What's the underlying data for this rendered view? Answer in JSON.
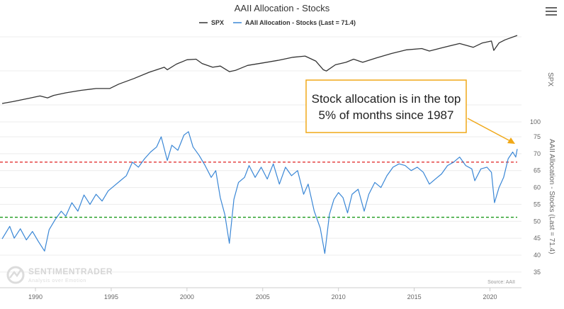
{
  "chart_data": {
    "type": "line",
    "title": "AAII Allocation - Stocks",
    "legend": [
      {
        "name": "SPX",
        "color": "#333333"
      },
      {
        "name": "AAII Allocation - Stocks (Last = 71.4)",
        "color": "#3a87d6"
      }
    ],
    "legend_position": "top-center",
    "x_range": [
      1987.8,
      2021.8
    ],
    "x_ticks": [
      "1990",
      "1995",
      "2000",
      "2005",
      "2010",
      "2015",
      "2020"
    ],
    "y_right_top_label": "SPX",
    "y_right_bottom_label": "AAII Allocation - Stocks (Last = 71.4)",
    "y_ticks": [
      "100",
      "75",
      "70",
      "65",
      "60",
      "55",
      "50",
      "45",
      "40",
      "35"
    ],
    "y_range": [
      35,
      100
    ],
    "reference_lines": [
      {
        "value": 67.5,
        "color": "#e02020",
        "style": "dashed"
      },
      {
        "value": 51.2,
        "color": "#1a9a1a",
        "style": "dashed"
      }
    ],
    "series": [
      {
        "name": "SPX",
        "color": "#333333",
        "points": [
          [
            1987.8,
            0.0
          ],
          [
            1988.5,
            0.03
          ],
          [
            1989.5,
            0.08
          ],
          [
            1990.3,
            0.12
          ],
          [
            1990.8,
            0.09
          ],
          [
            1991.2,
            0.13
          ],
          [
            1992,
            0.17
          ],
          [
            1993,
            0.21
          ],
          [
            1994,
            0.24
          ],
          [
            1994.9,
            0.24
          ],
          [
            1995.5,
            0.31
          ],
          [
            1996.5,
            0.4
          ],
          [
            1997.5,
            0.5
          ],
          [
            1998.5,
            0.58
          ],
          [
            1998.7,
            0.54
          ],
          [
            1999.3,
            0.63
          ],
          [
            2000,
            0.7
          ],
          [
            2000.6,
            0.71
          ],
          [
            2001,
            0.64
          ],
          [
            2001.7,
            0.58
          ],
          [
            2002.2,
            0.6
          ],
          [
            2002.8,
            0.51
          ],
          [
            2003.2,
            0.53
          ],
          [
            2004,
            0.61
          ],
          [
            2005,
            0.65
          ],
          [
            2006,
            0.69
          ],
          [
            2007,
            0.74
          ],
          [
            2007.8,
            0.76
          ],
          [
            2008.5,
            0.68
          ],
          [
            2009,
            0.54
          ],
          [
            2009.2,
            0.52
          ],
          [
            2009.8,
            0.62
          ],
          [
            2010.5,
            0.66
          ],
          [
            2011,
            0.71
          ],
          [
            2011.6,
            0.66
          ],
          [
            2012.5,
            0.73
          ],
          [
            2013.5,
            0.8
          ],
          [
            2014.5,
            0.86
          ],
          [
            2015.5,
            0.88
          ],
          [
            2016,
            0.84
          ],
          [
            2016.8,
            0.89
          ],
          [
            2018,
            0.96
          ],
          [
            2018.9,
            0.9
          ],
          [
            2019.5,
            0.97
          ],
          [
            2020.1,
            1.0
          ],
          [
            2020.25,
            0.85
          ],
          [
            2020.6,
            0.97
          ],
          [
            2021,
            1.02
          ],
          [
            2021.8,
            1.09
          ]
        ]
      },
      {
        "name": "AAII Allocation - Stocks",
        "color": "#3a87d6",
        "last_value": 71.4,
        "points": [
          [
            1987.8,
            44.8
          ],
          [
            1988.3,
            48.5
          ],
          [
            1988.6,
            45.0
          ],
          [
            1989.0,
            47.8
          ],
          [
            1989.4,
            44.5
          ],
          [
            1989.8,
            47.0
          ],
          [
            1990.2,
            44.0
          ],
          [
            1990.6,
            41.2
          ],
          [
            1990.9,
            47.5
          ],
          [
            1991.3,
            50.5
          ],
          [
            1991.7,
            53.0
          ],
          [
            1992.0,
            51.5
          ],
          [
            1992.4,
            55.5
          ],
          [
            1992.8,
            53.0
          ],
          [
            1993.2,
            57.8
          ],
          [
            1993.6,
            55.0
          ],
          [
            1994.0,
            58.0
          ],
          [
            1994.4,
            56.0
          ],
          [
            1994.8,
            59.0
          ],
          [
            1995.2,
            60.5
          ],
          [
            1995.6,
            62.0
          ],
          [
            1996.0,
            63.5
          ],
          [
            1996.4,
            67.5
          ],
          [
            1996.8,
            66.0
          ],
          [
            1997.2,
            68.5
          ],
          [
            1997.6,
            70.5
          ],
          [
            1998.0,
            72.0
          ],
          [
            1998.3,
            75.0
          ],
          [
            1998.7,
            68.0
          ],
          [
            1999.0,
            72.5
          ],
          [
            1999.4,
            71.0
          ],
          [
            1999.8,
            75.5
          ],
          [
            2000.1,
            76.5
          ],
          [
            2000.4,
            72.0
          ],
          [
            2000.8,
            69.5
          ],
          [
            2001.2,
            66.5
          ],
          [
            2001.6,
            63.0
          ],
          [
            2001.9,
            65.0
          ],
          [
            2002.2,
            57.0
          ],
          [
            2002.5,
            52.0
          ],
          [
            2002.8,
            43.5
          ],
          [
            2003.1,
            56.5
          ],
          [
            2003.4,
            61.5
          ],
          [
            2003.8,
            63.0
          ],
          [
            2004.1,
            66.5
          ],
          [
            2004.5,
            63.0
          ],
          [
            2004.9,
            66.0
          ],
          [
            2005.3,
            62.5
          ],
          [
            2005.7,
            67.0
          ],
          [
            2006.1,
            61.0
          ],
          [
            2006.5,
            66.0
          ],
          [
            2006.9,
            63.5
          ],
          [
            2007.3,
            65.0
          ],
          [
            2007.7,
            58.0
          ],
          [
            2008.0,
            61.0
          ],
          [
            2008.4,
            53.0
          ],
          [
            2008.8,
            48.0
          ],
          [
            2009.1,
            40.5
          ],
          [
            2009.4,
            52.0
          ],
          [
            2009.7,
            56.5
          ],
          [
            2010.0,
            58.5
          ],
          [
            2010.3,
            57.0
          ],
          [
            2010.6,
            52.5
          ],
          [
            2010.9,
            58.0
          ],
          [
            2011.3,
            59.5
          ],
          [
            2011.7,
            53.0
          ],
          [
            2012.0,
            58.0
          ],
          [
            2012.4,
            61.5
          ],
          [
            2012.8,
            60.0
          ],
          [
            2013.2,
            63.5
          ],
          [
            2013.6,
            66.0
          ],
          [
            2014.0,
            67.0
          ],
          [
            2014.4,
            66.5
          ],
          [
            2014.8,
            65.0
          ],
          [
            2015.2,
            66.0
          ],
          [
            2015.6,
            64.5
          ],
          [
            2016.0,
            61.0
          ],
          [
            2016.4,
            62.5
          ],
          [
            2016.8,
            64.0
          ],
          [
            2017.2,
            66.5
          ],
          [
            2017.6,
            67.5
          ],
          [
            2018.0,
            69.0
          ],
          [
            2018.4,
            66.5
          ],
          [
            2018.8,
            65.5
          ],
          [
            2019.0,
            62.0
          ],
          [
            2019.4,
            65.5
          ],
          [
            2019.8,
            66.0
          ],
          [
            2020.1,
            64.5
          ],
          [
            2020.3,
            55.5
          ],
          [
            2020.6,
            60.0
          ],
          [
            2020.9,
            63.0
          ],
          [
            2021.2,
            68.5
          ],
          [
            2021.5,
            70.5
          ],
          [
            2021.7,
            69.0
          ],
          [
            2021.8,
            71.4
          ]
        ]
      }
    ]
  },
  "annotation": {
    "line1": "Stock allocation is in the top",
    "line2": "5% of months since 1987",
    "border_color": "#f0a818"
  },
  "watermark": {
    "brand": "SENTIMENTRADER",
    "tagline": "Analysis over Emotion"
  },
  "source": "Source: AAII",
  "menu_icon": "hamburger-menu-icon"
}
